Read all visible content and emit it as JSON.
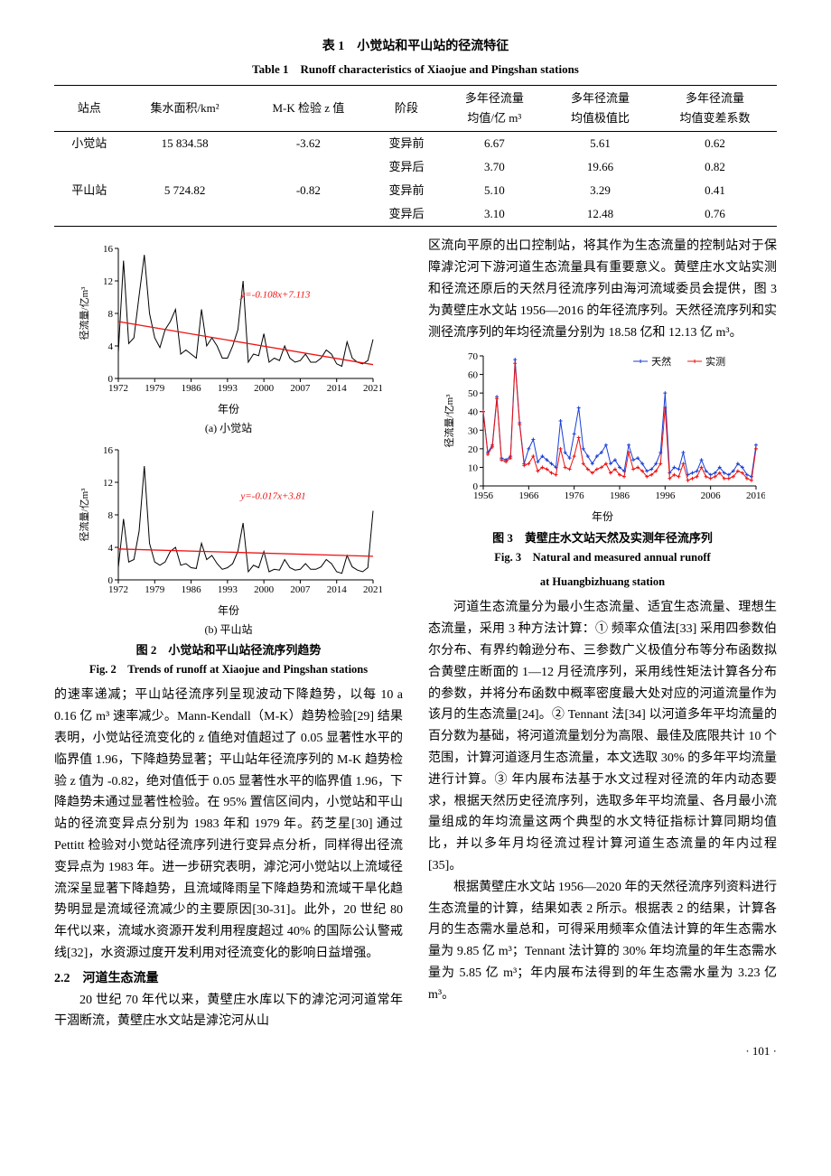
{
  "table1": {
    "title_cn": "表 1　小觉站和平山站的径流特征",
    "title_en": "Table 1　Runoff characteristics of Xiaojue and Pingshan stations",
    "headers": [
      "站点",
      "集水面积/km²",
      "M-K 检验 z 值",
      "阶段",
      "多年径流量\n均值/亿 m³",
      "多年径流量\n均值极值比",
      "多年径流量\n均值变差系数"
    ],
    "rows": [
      [
        "小觉站",
        "15 834.58",
        "-3.62",
        "变异前",
        "6.67",
        "5.61",
        "0.62"
      ],
      [
        "",
        "",
        "",
        "变异后",
        "3.70",
        "19.66",
        "0.82"
      ],
      [
        "平山站",
        "5 724.82",
        "-0.82",
        "变异前",
        "5.10",
        "3.29",
        "0.41"
      ],
      [
        "",
        "",
        "",
        "变异后",
        "3.10",
        "12.48",
        "0.76"
      ]
    ]
  },
  "fig2": {
    "cap_cn": "图 2　小觉站和平山站径流序列趋势",
    "cap_en": "Fig. 2　Trends of runoff at Xiaojue and Pingshan stations",
    "sub_a": "(a) 小觉站",
    "sub_b": "(b) 平山站",
    "xlabel": "年份",
    "ylabel": "径流量/亿m³",
    "x_ticks": [
      1972,
      1979,
      1986,
      1993,
      2000,
      2007,
      2014,
      2021
    ],
    "a": {
      "ymax": 16,
      "ytick": 4,
      "trend_eq": "y=-0.108x+7.113",
      "trend_x": [
        1972,
        2021
      ],
      "trend_y": [
        7.0,
        1.7
      ],
      "colors": {
        "trend": "#e11",
        "series": "#000",
        "axis": "#000"
      },
      "series_years": [
        1972,
        1973,
        1974,
        1975,
        1976,
        1977,
        1978,
        1979,
        1980,
        1981,
        1982,
        1983,
        1984,
        1985,
        1986,
        1987,
        1988,
        1989,
        1990,
        1991,
        1992,
        1993,
        1994,
        1995,
        1996,
        1997,
        1998,
        1999,
        2000,
        2001,
        2002,
        2003,
        2004,
        2005,
        2006,
        2007,
        2008,
        2009,
        2010,
        2011,
        2012,
        2013,
        2014,
        2015,
        2016,
        2017,
        2018,
        2019,
        2020,
        2021
      ],
      "series_vals": [
        3.2,
        14.5,
        4.3,
        5.0,
        10.2,
        15.2,
        8.0,
        5.0,
        3.8,
        6.0,
        7.0,
        8.5,
        3.0,
        3.5,
        3.0,
        2.5,
        8.5,
        4.0,
        5.0,
        4.0,
        2.5,
        2.5,
        4.0,
        6.0,
        12.0,
        2.0,
        3.0,
        2.8,
        5.5,
        2.0,
        2.5,
        2.2,
        4.0,
        2.5,
        2.0,
        2.2,
        3.0,
        2.0,
        2.0,
        2.5,
        3.5,
        3.0,
        1.8,
        1.5,
        4.5,
        2.5,
        2.0,
        1.8,
        2.2,
        4.8
      ]
    },
    "b": {
      "ymax": 16,
      "ytick": 4,
      "trend_eq": "y=-0.017x+3.81",
      "trend_x": [
        1972,
        2021
      ],
      "trend_y": [
        3.8,
        2.9
      ],
      "colors": {
        "trend": "#e11",
        "series": "#000",
        "axis": "#000"
      },
      "series_years": [
        1972,
        1973,
        1974,
        1975,
        1976,
        1977,
        1978,
        1979,
        1980,
        1981,
        1982,
        1983,
        1984,
        1985,
        1986,
        1987,
        1988,
        1989,
        1990,
        1991,
        1992,
        1993,
        1994,
        1995,
        1996,
        1997,
        1998,
        1999,
        2000,
        2001,
        2002,
        2003,
        2004,
        2005,
        2006,
        2007,
        2008,
        2009,
        2010,
        2011,
        2012,
        2013,
        2014,
        2015,
        2016,
        2017,
        2018,
        2019,
        2020,
        2021
      ],
      "series_vals": [
        1.5,
        7.5,
        2.2,
        2.5,
        6.0,
        14.0,
        4.5,
        2.2,
        1.8,
        2.2,
        3.5,
        4.0,
        1.8,
        2.0,
        1.5,
        1.4,
        4.5,
        2.5,
        3.0,
        2.0,
        1.3,
        1.5,
        2.0,
        3.5,
        7.0,
        1.0,
        1.8,
        1.5,
        3.5,
        1.0,
        1.3,
        1.2,
        2.5,
        1.5,
        1.2,
        1.3,
        2.0,
        1.3,
        1.3,
        1.6,
        2.5,
        2.0,
        1.0,
        0.8,
        3.0,
        1.6,
        1.2,
        1.0,
        1.5,
        8.5
      ]
    }
  },
  "fig3": {
    "cap_cn": "图 3　黄壁庄水文站天然及实测年径流序列",
    "cap_en_l1": "Fig. 3　Natural and measured annual runoff",
    "cap_en_l2": "at Huangbizhuang station",
    "xlabel": "年份",
    "ylabel": "径流量/亿m³",
    "legend": [
      "天然",
      "实测"
    ],
    "x_ticks": [
      1956,
      1966,
      1976,
      1986,
      1996,
      2006,
      2016
    ],
    "ymax": 70,
    "ytick": 10,
    "colors": {
      "natural": "#1a3fd6",
      "measured": "#e11",
      "axis": "#000"
    },
    "years": [
      1956,
      1957,
      1958,
      1959,
      1960,
      1961,
      1962,
      1963,
      1964,
      1965,
      1966,
      1967,
      1968,
      1969,
      1970,
      1971,
      1972,
      1973,
      1974,
      1975,
      1976,
      1977,
      1978,
      1979,
      1980,
      1981,
      1982,
      1983,
      1984,
      1985,
      1986,
      1987,
      1988,
      1989,
      1990,
      1991,
      1992,
      1993,
      1994,
      1995,
      1996,
      1997,
      1998,
      1999,
      2000,
      2001,
      2002,
      2003,
      2004,
      2005,
      2006,
      2007,
      2008,
      2009,
      2010,
      2011,
      2012,
      2013,
      2014,
      2015,
      2016
    ],
    "natural": [
      40,
      18,
      22,
      48,
      15,
      14,
      16,
      68,
      34,
      12,
      20,
      25,
      13,
      16,
      14,
      12,
      10,
      35,
      18,
      15,
      28,
      42,
      20,
      16,
      12,
      16,
      18,
      22,
      12,
      14,
      10,
      8,
      22,
      14,
      15,
      12,
      8,
      9,
      12,
      18,
      50,
      7,
      10,
      9,
      18,
      6,
      7,
      8,
      14,
      8,
      6,
      7,
      10,
      7,
      6,
      8,
      12,
      10,
      6,
      5,
      22
    ],
    "measured": [
      40,
      17,
      21,
      47,
      14,
      13,
      15,
      66,
      33,
      11,
      12,
      16,
      8,
      10,
      9,
      7,
      6,
      20,
      10,
      9,
      16,
      26,
      12,
      9,
      7,
      9,
      10,
      12,
      7,
      9,
      6,
      5,
      18,
      9,
      10,
      8,
      5,
      6,
      8,
      12,
      42,
      4,
      6,
      5,
      12,
      3,
      4,
      5,
      10,
      5,
      4,
      5,
      7,
      4,
      4,
      5,
      8,
      7,
      4,
      3,
      20
    ],
    "marker": "+"
  },
  "text": {
    "left_p1a": "的速率递减；平山站径流序列呈现波动下降趋势，以每 10 a 0.16 亿 m³ 速率减少。Mann-Kendall（M-K）趋势检验[29] 结果表明，小觉站径流变化的 z 值绝对值超过了 0.05 显著性水平的临界值 1.96，下降趋势显著；平山站年径流序列的 M-K 趋势检验 z 值为 -0.82，绝对值低于 0.05 显著性水平的临界值 1.96，下降趋势未通过显著性检验。在 95% 置信区间内，小觉站和平山站的径流变异点分别为 1983 年和 1979 年。药芝星[30] 通过 Pettitt 检验对小觉站径流序列进行变异点分析，同样得出径流变异点为 1983 年。进一步研究表明，滹沱河小觉站以上流域径流深呈显著下降趋势，且流域降雨呈下降趋势和流域干旱化趋势明显是流域径流减少的主要原因[30-31]。此外，20 世纪 80 年代以来，流域水资源开发利用程度超过 40% 的国际公认警戒线[32]，水资源过度开发利用对径流变化的影响日益增强。",
    "sec22": "2.2　河道生态流量",
    "left_p2": "20 世纪 70 年代以来，黄壁庄水库以下的滹沱河河道常年干涸断流，黄壁庄水文站是滹沱河从山",
    "right_p1": "区流向平原的出口控制站，将其作为生态流量的控制站对于保障滹沱河下游河道生态流量具有重要意义。黄壁庄水文站实测和径流还原后的天然月径流序列由海河流域委员会提供，图 3 为黄壁庄水文站 1956—2016 的年径流序列。天然径流序列和实测径流序列的年均径流量分别为 18.58 亿和 12.13 亿 m³。",
    "right_p2": "河道生态流量分为最小生态流量、适宜生态流量、理想生态流量，采用 3 种方法计算：① 频率众值法[33] 采用四参数伯尔分布、有界约翰逊分布、三参数广义极值分布等分布函数拟合黄壁庄断面的 1—12 月径流序列，采用线性矩法计算各分布的参数，并将分布函数中概率密度最大处对应的河道流量作为该月的生态流量[24]。② Tennant 法[34] 以河道多年平均流量的百分数为基础，将河道流量划分为高限、最佳及底限共计 10 个范围，计算河道逐月生态流量，本文选取 30% 的多年平均流量进行计算。③ 年内展布法基于水文过程对径流的年内动态要求，根据天然历史径流序列，选取多年平均流量、各月最小流量组成的年均流量这两个典型的水文特征指标计算同期均值比，并以多年月均径流过程计算河道生态流量的年内过程[35]。",
    "right_p3": "根据黄壁庄水文站 1956—2020 年的天然径流序列资料进行生态流量的计算，结果如表 2 所示。根据表 2 的结果，计算各月的生态需水量总和，可得采用频率众值法计算的年生态需水量为 9.85 亿 m³；Tennant 法计算的 30% 年均流量的年生态需水量为 5.85 亿 m³；年内展布法得到的年生态需水量为 3.23 亿 m³。"
  },
  "pageno": "· 101 ·"
}
